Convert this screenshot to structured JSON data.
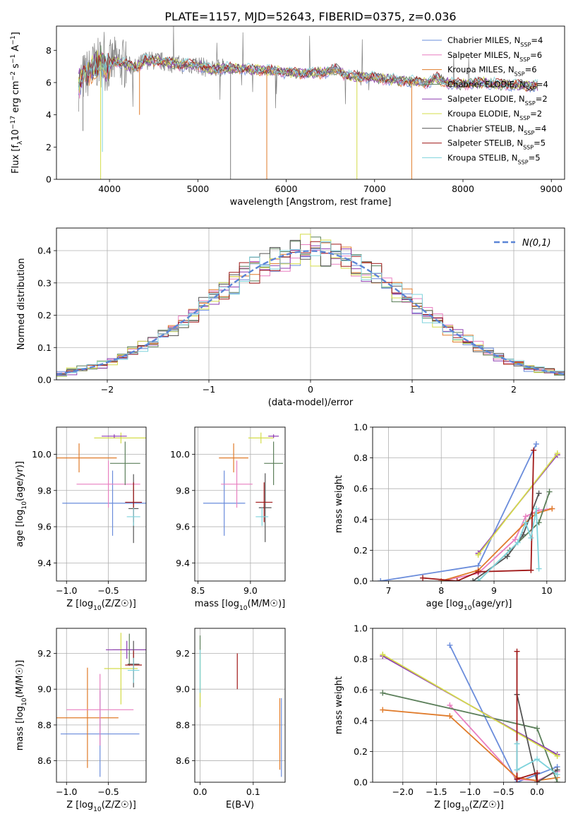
{
  "title": "PLATE=1157, MJD=52643, FIBERID=0375, z=0.036",
  "palette": {
    "chabrier_miles": "#6a8cdb",
    "salpeter_miles": "#e87fc0",
    "kroupa_miles": "#e07b2a",
    "chabrier_elodie": "#5b7f5a",
    "salpeter_elodie": "#8e3cb0",
    "kroupa_elodie": "#d4dc4a",
    "chabrier_stelib": "#555555",
    "salpeter_stelib": "#a01818",
    "kroupa_stelib": "#7ed3dc",
    "gray_data": "#808080",
    "grid": "#b0b0b0"
  },
  "chart_data": [
    {
      "id": "spectrum",
      "type": "line",
      "title": "PLATE=1157, MJD=52643, FIBERID=0375, z=0.036",
      "xlabel": "wavelength [Angstrom, rest frame]",
      "ylabel": "Flux [f_λ 10^-17 erg cm^-2 s^-1 A^-1]",
      "xlim": [
        3400,
        9150
      ],
      "ylim": [
        0,
        9.5
      ],
      "xticks": [
        4000,
        5000,
        6000,
        7000,
        8000,
        9000
      ],
      "yticks": [
        0,
        2,
        4,
        6,
        8
      ],
      "grid": false,
      "legend_placement": "top-right",
      "legend": [
        {
          "label": "Chabrier MILES, N",
          "sub": "SSP",
          "eq": "=4",
          "color_key": "chabrier_miles"
        },
        {
          "label": "Salpeter MILES, N",
          "sub": "SSP",
          "eq": "=6",
          "color_key": "salpeter_miles"
        },
        {
          "label": "Kroupa MILES, N",
          "sub": "SSP",
          "eq": "=6",
          "color_key": "kroupa_miles"
        },
        {
          "label": "Chabrier ELODIE, N",
          "sub": "SSP",
          "eq": "=4",
          "color_key": "chabrier_elodie"
        },
        {
          "label": "Salpeter ELODIE, N",
          "sub": "SSP",
          "eq": "=2",
          "color_key": "salpeter_elodie"
        },
        {
          "label": "Kroupa ELODIE, N",
          "sub": "SSP",
          "eq": "=2",
          "color_key": "kroupa_elodie"
        },
        {
          "label": "Chabrier STELIB, N",
          "sub": "SSP",
          "eq": "=4",
          "color_key": "chabrier_stelib"
        },
        {
          "label": "Salpeter STELIB, N",
          "sub": "SSP",
          "eq": "=5",
          "color_key": "salpeter_stelib"
        },
        {
          "label": "Kroupa STELIB, N",
          "sub": "SSP",
          "eq": "=5",
          "color_key": "kroupa_stelib"
        }
      ],
      "continuum": [
        [
          3650,
          5.8
        ],
        [
          3700,
          6.3
        ],
        [
          3760,
          6.6
        ],
        [
          3820,
          7.0
        ],
        [
          3900,
          7.3
        ],
        [
          3970,
          6.9
        ],
        [
          4050,
          7.3
        ],
        [
          4150,
          7.2
        ],
        [
          4300,
          6.9
        ],
        [
          4400,
          7.4
        ],
        [
          4600,
          7.3
        ],
        [
          4800,
          7.1
        ],
        [
          5000,
          7.1
        ],
        [
          5150,
          6.8
        ],
        [
          5300,
          6.9
        ],
        [
          5500,
          6.85
        ],
        [
          5800,
          6.75
        ],
        [
          6100,
          6.6
        ],
        [
          6400,
          6.6
        ],
        [
          6563,
          6.8
        ],
        [
          6700,
          6.4
        ],
        [
          7000,
          6.3
        ],
        [
          7300,
          6.1
        ],
        [
          7600,
          6.0
        ],
        [
          7700,
          6.3
        ],
        [
          7800,
          6.0
        ],
        [
          8000,
          5.9
        ],
        [
          8200,
          6.0
        ],
        [
          8400,
          5.9
        ],
        [
          8600,
          5.85
        ],
        [
          8800,
          5.8
        ]
      ],
      "spikes": [
        {
          "x": 3900,
          "y": 0,
          "color_key": "kroupa_elodie"
        },
        {
          "x": 5370,
          "y": 0,
          "color_key": "gray_data"
        },
        {
          "x": 5780,
          "y": 0,
          "color_key": "kroupa_miles"
        },
        {
          "x": 6800,
          "y": 0,
          "color_key": "kroupa_elodie"
        },
        {
          "x": 7420,
          "y": 0,
          "color_key": "kroupa_miles"
        },
        {
          "x": 3920,
          "y": 1.7,
          "color_key": "kroupa_stelib"
        },
        {
          "x": 3700,
          "y": 3.0,
          "color_key": "gray_data"
        },
        {
          "x": 4340,
          "y": 4.0,
          "color_key": "kroupa_miles"
        }
      ]
    },
    {
      "id": "residuals",
      "type": "step",
      "xlabel": "(data-model)/error",
      "ylabel": "Normed distribution",
      "xlim": [
        -2.5,
        2.5
      ],
      "ylim": [
        0,
        0.47
      ],
      "xticks": [
        -2,
        -1,
        0,
        1,
        2
      ],
      "yticks": [
        0.0,
        0.1,
        0.2,
        0.3,
        0.4
      ],
      "grid": true,
      "legend_placement": "top-right",
      "gaussian_label": "N(0,1)",
      "bin_width": 0.1
    },
    {
      "id": "age_vs_Z",
      "type": "errorbar",
      "xlabel": "Z [log10(Z/Z☉)]",
      "ylabel": "age [log10(age/yr)]",
      "xlim": [
        -1.12,
        -0.05
      ],
      "ylim": [
        9.3,
        10.15
      ],
      "xticks": [
        -1.0,
        -0.5
      ],
      "yticks": [
        9.4,
        9.6,
        9.8,
        10.0
      ],
      "grid": true,
      "points": [
        {
          "x": -0.45,
          "y": 9.73,
          "xerr": 0.6,
          "yerr": 0.18,
          "color_key": "chabrier_miles"
        },
        {
          "x": -0.85,
          "y": 9.98,
          "xerr": 0.45,
          "yerr": 0.08,
          "color_key": "kroupa_miles"
        },
        {
          "x": -0.5,
          "y": 9.835,
          "xerr": 0.38,
          "yerr": 0.13,
          "color_key": "salpeter_miles"
        },
        {
          "x": -0.3,
          "y": 9.95,
          "xerr": 0.18,
          "yerr": 0.12,
          "color_key": "chabrier_elodie"
        },
        {
          "x": -0.35,
          "y": 10.09,
          "xerr": 0.32,
          "yerr": 0.03,
          "color_key": "kroupa_elodie"
        },
        {
          "x": -0.43,
          "y": 10.1,
          "xerr": 0.15,
          "yerr": 0.01,
          "color_key": "salpeter_elodie"
        },
        {
          "x": -0.2,
          "y": 9.7,
          "xerr": 0.06,
          "yerr": 0.19,
          "color_key": "chabrier_stelib"
        },
        {
          "x": -0.2,
          "y": 9.735,
          "xerr": 0.1,
          "yerr": 0.11,
          "color_key": "salpeter_stelib"
        },
        {
          "x": -0.2,
          "y": 9.655,
          "xerr": 0.08,
          "yerr": 0.05,
          "color_key": "kroupa_stelib"
        }
      ]
    },
    {
      "id": "age_vs_mass",
      "type": "errorbar",
      "xlabel": "mass [log10(M/M☉)]",
      "ylabel": "",
      "xlim": [
        8.47,
        9.33
      ],
      "ylim": [
        9.3,
        10.15
      ],
      "xticks": [
        8.5,
        9.0
      ],
      "yticks": [
        9.4,
        9.6,
        9.8,
        10.0
      ],
      "grid": true,
      "points": [
        {
          "x": 8.75,
          "y": 9.73,
          "xerr": 0.2,
          "yerr": 0.18,
          "color_key": "chabrier_miles"
        },
        {
          "x": 8.84,
          "y": 9.98,
          "xerr": 0.14,
          "yerr": 0.08,
          "color_key": "kroupa_miles"
        },
        {
          "x": 8.87,
          "y": 9.835,
          "xerr": 0.15,
          "yerr": 0.13,
          "color_key": "salpeter_miles"
        },
        {
          "x": 9.22,
          "y": 9.95,
          "xerr": 0.09,
          "yerr": 0.12,
          "color_key": "chabrier_elodie"
        },
        {
          "x": 9.1,
          "y": 10.09,
          "xerr": 0.12,
          "yerr": 0.03,
          "color_key": "kroupa_elodie"
        },
        {
          "x": 9.22,
          "y": 10.1,
          "xerr": 0.05,
          "yerr": 0.01,
          "color_key": "salpeter_elodie"
        },
        {
          "x": 9.14,
          "y": 9.705,
          "xerr": 0.06,
          "yerr": 0.19,
          "color_key": "chabrier_stelib"
        },
        {
          "x": 9.13,
          "y": 9.735,
          "xerr": 0.08,
          "yerr": 0.11,
          "color_key": "salpeter_stelib"
        },
        {
          "x": 9.11,
          "y": 9.655,
          "xerr": 0.06,
          "yerr": 0.05,
          "color_key": "kroupa_stelib"
        }
      ]
    },
    {
      "id": "weight_vs_age",
      "type": "line",
      "xlabel": "age [log10(age/yr)]",
      "ylabel": "mass weight",
      "xlim": [
        6.7,
        10.35
      ],
      "ylim": [
        0,
        1.0
      ],
      "xticks": [
        7,
        8,
        9,
        10
      ],
      "yticks": [
        0.0,
        0.2,
        0.4,
        0.6,
        0.8,
        1.0
      ],
      "grid": true,
      "series": [
        {
          "color_key": "chabrier_miles",
          "points": [
            [
              6.85,
              0.0
            ],
            [
              8.7,
              0.1
            ],
            [
              9.8,
              0.89
            ]
          ]
        },
        {
          "color_key": "salpeter_miles",
          "points": [
            [
              8.0,
              0.0
            ],
            [
              8.7,
              0.05
            ],
            [
              9.4,
              0.27
            ],
            [
              9.6,
              0.42
            ],
            [
              9.85,
              0.46
            ],
            [
              10.1,
              0.47
            ]
          ]
        },
        {
          "color_key": "kroupa_miles",
          "points": [
            [
              8.0,
              0.0
            ],
            [
              8.7,
              0.07
            ],
            [
              9.6,
              0.38
            ],
            [
              9.8,
              0.44
            ],
            [
              10.1,
              0.47
            ]
          ]
        },
        {
          "color_key": "chabrier_elodie",
          "points": [
            [
              8.7,
              0.0
            ],
            [
              9.3,
              0.2
            ],
            [
              9.85,
              0.38
            ],
            [
              10.05,
              0.58
            ]
          ]
        },
        {
          "color_key": "salpeter_elodie",
          "points": [
            [
              8.7,
              0.18
            ],
            [
              10.2,
              0.82
            ]
          ]
        },
        {
          "color_key": "kroupa_elodie",
          "points": [
            [
              8.7,
              0.17
            ],
            [
              10.2,
              0.83
            ]
          ]
        },
        {
          "color_key": "chabrier_stelib",
          "points": [
            [
              8.6,
              0.0
            ],
            [
              9.25,
              0.16
            ],
            [
              9.55,
              0.3
            ],
            [
              9.85,
              0.57
            ]
          ]
        },
        {
          "color_key": "salpeter_stelib",
          "points": [
            [
              7.65,
              0.02
            ],
            [
              8.3,
              0.0
            ],
            [
              8.7,
              0.06
            ],
            [
              9.7,
              0.07
            ],
            [
              9.75,
              0.85
            ]
          ]
        },
        {
          "color_key": "kroupa_stelib",
          "points": [
            [
              8.7,
              0.0
            ],
            [
              9.45,
              0.25
            ],
            [
              9.6,
              0.38
            ],
            [
              9.7,
              0.28
            ],
            [
              9.8,
              0.47
            ],
            [
              9.85,
              0.08
            ]
          ]
        }
      ]
    },
    {
      "id": "mass_vs_Z",
      "type": "errorbar",
      "xlabel": "Z [log10(Z/Z☉)]",
      "ylabel": "mass [log10(M/M☉)]",
      "xlim": [
        -1.12,
        -0.05
      ],
      "ylim": [
        8.48,
        9.34
      ],
      "xticks": [
        -1.0,
        -0.5
      ],
      "yticks": [
        8.6,
        8.8,
        9.0,
        9.2
      ],
      "grid": true,
      "points": [
        {
          "x": -0.6,
          "y": 8.75,
          "xerr": 0.47,
          "yerr": 0.24,
          "color_key": "chabrier_miles"
        },
        {
          "x": -0.75,
          "y": 8.84,
          "xerr": 0.37,
          "yerr": 0.28,
          "color_key": "kroupa_miles"
        },
        {
          "x": -0.6,
          "y": 8.885,
          "xerr": 0.4,
          "yerr": 0.2,
          "color_key": "salpeter_miles"
        },
        {
          "x": -0.25,
          "y": 9.22,
          "xerr": 0.2,
          "yerr": 0.09,
          "color_key": "chabrier_elodie"
        },
        {
          "x": -0.35,
          "y": 9.115,
          "xerr": 0.2,
          "yerr": 0.2,
          "color_key": "kroupa_elodie"
        },
        {
          "x": -0.28,
          "y": 9.22,
          "xerr": 0.25,
          "yerr": 0.05,
          "color_key": "salpeter_elodie"
        },
        {
          "x": -0.2,
          "y": 9.14,
          "xerr": 0.07,
          "yerr": 0.13,
          "color_key": "chabrier_stelib"
        },
        {
          "x": -0.2,
          "y": 9.135,
          "xerr": 0.1,
          "yerr": 0.08,
          "color_key": "salpeter_stelib"
        },
        {
          "x": -0.2,
          "y": 9.105,
          "xerr": 0.07,
          "yerr": 0.07,
          "color_key": "kroupa_stelib"
        }
      ]
    },
    {
      "id": "mass_vs_ebv",
      "type": "errorbar",
      "xlabel": "E(B-V)",
      "ylabel": "",
      "xlim": [
        -0.01,
        0.16
      ],
      "ylim": [
        8.48,
        9.34
      ],
      "xticks": [
        0.0,
        0.1
      ],
      "yticks": [
        8.6,
        8.8,
        9.0,
        9.2
      ],
      "grid": true,
      "points": [
        {
          "x": 0.0,
          "y": 9.1,
          "xerr": 0,
          "yerr": 0.2,
          "color_key": "chabrier_elodie"
        },
        {
          "x": 0.0,
          "y": 9.05,
          "xerr": 0,
          "yerr": 0.15,
          "color_key": "kroupa_elodie"
        },
        {
          "x": 0.0,
          "y": 9.1,
          "xerr": 0,
          "yerr": 0.12,
          "color_key": "kroupa_stelib"
        },
        {
          "x": 0.07,
          "y": 9.1,
          "xerr": 0,
          "yerr": 0.1,
          "color_key": "salpeter_stelib"
        },
        {
          "x": 0.15,
          "y": 8.75,
          "xerr": 0,
          "yerr": 0.2,
          "color_key": "kroupa_miles"
        },
        {
          "x": 0.153,
          "y": 8.73,
          "xerr": 0,
          "yerr": 0.22,
          "color_key": "chabrier_miles"
        }
      ]
    },
    {
      "id": "weight_vs_Z",
      "type": "line",
      "xlabel": "Z [log10(Z/Z☉)]",
      "ylabel": "mass weight",
      "xlim": [
        -2.45,
        0.42
      ],
      "ylim": [
        0,
        1.0
      ],
      "xticks": [
        -2.0,
        -1.5,
        -1.0,
        -0.5,
        0.0
      ],
      "yticks": [
        0.0,
        0.2,
        0.4,
        0.6,
        0.8,
        1.0
      ],
      "grid": true,
      "series": [
        {
          "color_key": "chabrier_miles",
          "points": [
            [
              -1.3,
              0.89
            ],
            [
              -0.3,
              0.0
            ],
            [
              0.3,
              0.1
            ]
          ]
        },
        {
          "color_key": "salpeter_miles",
          "points": [
            [
              -1.3,
              0.5
            ],
            [
              -0.3,
              0.02
            ],
            [
              0.0,
              0.01
            ],
            [
              0.3,
              0.07
            ]
          ]
        },
        {
          "color_key": "kroupa_miles",
          "points": [
            [
              -2.3,
              0.47
            ],
            [
              -1.3,
              0.43
            ],
            [
              -0.3,
              0.03
            ],
            [
              0.0,
              0.01
            ],
            [
              0.3,
              0.03
            ]
          ]
        },
        {
          "color_key": "chabrier_elodie",
          "points": [
            [
              -2.3,
              0.58
            ],
            [
              0.0,
              0.35
            ],
            [
              0.3,
              0.0
            ]
          ]
        },
        {
          "color_key": "salpeter_elodie",
          "points": [
            [
              -2.3,
              0.82
            ],
            [
              0.3,
              0.18
            ]
          ]
        },
        {
          "color_key": "kroupa_elodie",
          "points": [
            [
              -2.3,
              0.83
            ],
            [
              0.3,
              0.17
            ]
          ]
        },
        {
          "color_key": "chabrier_stelib",
          "points": [
            [
              -0.3,
              0.57
            ],
            [
              0.0,
              0.0
            ],
            [
              0.3,
              0.08
            ]
          ]
        },
        {
          "color_key": "salpeter_stelib",
          "points": [
            [
              -0.3,
              0.85
            ],
            [
              -0.3,
              0.02
            ],
            [
              0.0,
              0.06
            ],
            [
              0.0,
              0.0
            ]
          ]
        },
        {
          "color_key": "kroupa_stelib",
          "points": [
            [
              -0.3,
              0.25
            ],
            [
              -0.3,
              0.08
            ],
            [
              0.0,
              0.15
            ],
            [
              0.3,
              0.05
            ]
          ]
        }
      ]
    }
  ]
}
